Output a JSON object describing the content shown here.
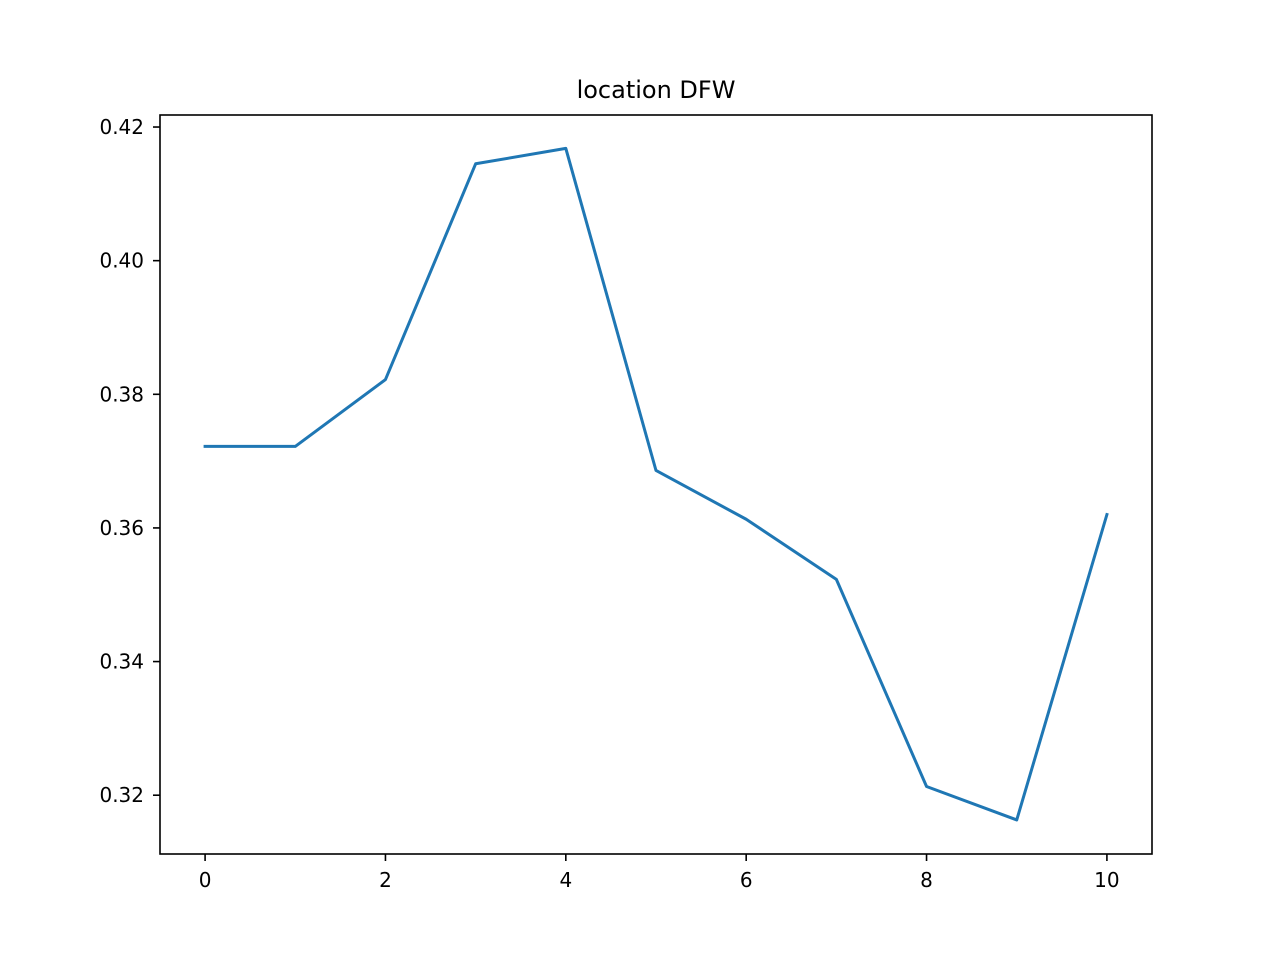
{
  "chart_data": {
    "type": "line",
    "title": "location DFW",
    "xlabel": "",
    "ylabel": "",
    "x": [
      0,
      1,
      2,
      3,
      4,
      5,
      6,
      7,
      8,
      9,
      10
    ],
    "series": [
      {
        "values": [
          0.3722,
          0.3722,
          0.3822,
          0.4145,
          0.4168,
          0.3686,
          0.3613,
          0.3523,
          0.3213,
          0.3163,
          0.362
        ],
        "color": "#1f77b4"
      }
    ],
    "xlim": [
      -0.5,
      10.5
    ],
    "ylim": [
      0.3112,
      0.4218
    ],
    "xticks": [
      0,
      2,
      4,
      6,
      8,
      10
    ],
    "xtick_labels": [
      "0",
      "2",
      "4",
      "6",
      "8",
      "10"
    ],
    "yticks": [
      0.32,
      0.34,
      0.36,
      0.38,
      0.4,
      0.42
    ],
    "ytick_labels": [
      "0.32",
      "0.34",
      "0.36",
      "0.38",
      "0.40",
      "0.42"
    ],
    "grid": false,
    "legend": false
  }
}
